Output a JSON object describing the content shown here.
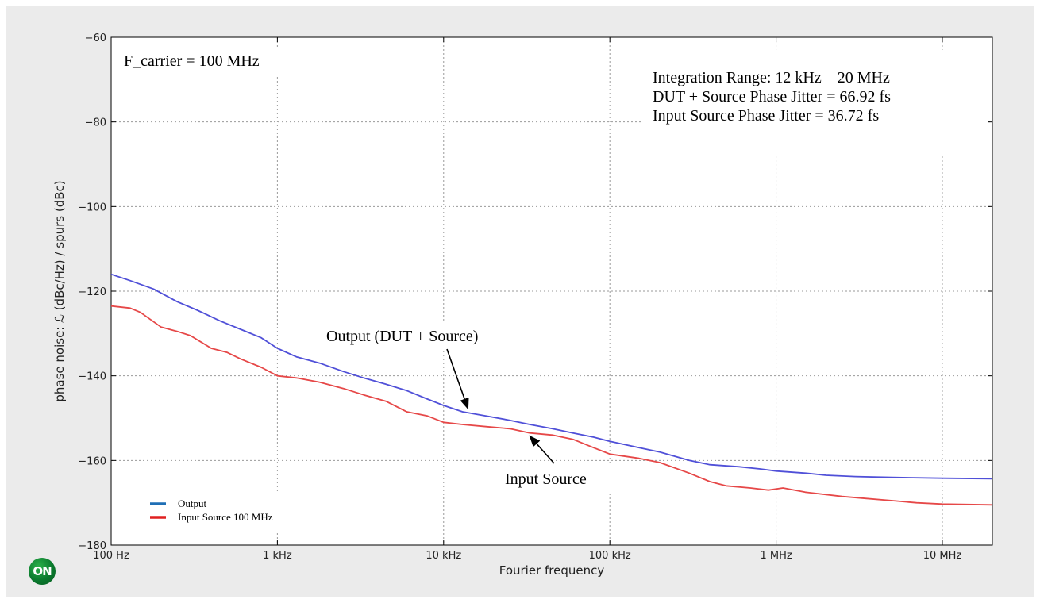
{
  "chart_data": {
    "type": "line",
    "xlabel": "Fourier frequency",
    "ylabel": "phase noise: ℒ (dBc/Hz) / spurs (dBc)",
    "x_scale": "log",
    "x_range_hz": [
      100,
      20000000
    ],
    "ylim": [
      -180,
      -60
    ],
    "y_ticks": [
      -60,
      -80,
      -100,
      -120,
      -140,
      -160,
      -180
    ],
    "x_ticks": [
      {
        "hz": 100,
        "label": "100 Hz"
      },
      {
        "hz": 1000,
        "label": "1 kHz"
      },
      {
        "hz": 10000,
        "label": "10 kHz"
      },
      {
        "hz": 100000,
        "label": "100 kHz"
      },
      {
        "hz": 1000000,
        "label": "1 MHz"
      },
      {
        "hz": 10000000,
        "label": "10 MHz"
      }
    ],
    "grid": true,
    "legend_position": "lower-left",
    "series": [
      {
        "name": "Output",
        "color": "#5050d8",
        "legend_color": "#1f6fb5",
        "points": [
          [
            100,
            -116
          ],
          [
            130,
            -117.5
          ],
          [
            180,
            -119.5
          ],
          [
            250,
            -122.5
          ],
          [
            330,
            -124.5
          ],
          [
            450,
            -127
          ],
          [
            600,
            -129
          ],
          [
            800,
            -131
          ],
          [
            1000,
            -133.5
          ],
          [
            1300,
            -135.5
          ],
          [
            1800,
            -137
          ],
          [
            2500,
            -139
          ],
          [
            3300,
            -140.5
          ],
          [
            4500,
            -142
          ],
          [
            6000,
            -143.5
          ],
          [
            8000,
            -145.5
          ],
          [
            10000,
            -147
          ],
          [
            13000,
            -148.5
          ],
          [
            18000,
            -149.5
          ],
          [
            25000,
            -150.5
          ],
          [
            33000,
            -151.5
          ],
          [
            45000,
            -152.5
          ],
          [
            60000,
            -153.5
          ],
          [
            80000,
            -154.5
          ],
          [
            100000,
            -155.5
          ],
          [
            150000,
            -157
          ],
          [
            200000,
            -158
          ],
          [
            300000,
            -160
          ],
          [
            400000,
            -161
          ],
          [
            600000,
            -161.5
          ],
          [
            800000,
            -162
          ],
          [
            1000000,
            -162.5
          ],
          [
            1500000,
            -163
          ],
          [
            2000000,
            -163.5
          ],
          [
            3000000,
            -163.8
          ],
          [
            5000000,
            -164
          ],
          [
            10000000,
            -164.2
          ],
          [
            20000000,
            -164.3
          ]
        ]
      },
      {
        "name": "Input Source 100 MHz",
        "color": "#e64848",
        "legend_color": "#e02020",
        "points": [
          [
            100,
            -123.5
          ],
          [
            130,
            -124
          ],
          [
            150,
            -125
          ],
          [
            200,
            -128.5
          ],
          [
            250,
            -129.5
          ],
          [
            300,
            -130.5
          ],
          [
            400,
            -133.5
          ],
          [
            500,
            -134.5
          ],
          [
            600,
            -136
          ],
          [
            800,
            -138
          ],
          [
            1000,
            -140
          ],
          [
            1300,
            -140.5
          ],
          [
            1800,
            -141.5
          ],
          [
            2500,
            -143
          ],
          [
            3300,
            -144.5
          ],
          [
            4500,
            -146
          ],
          [
            6000,
            -148.5
          ],
          [
            8000,
            -149.5
          ],
          [
            10000,
            -151
          ],
          [
            13000,
            -151.5
          ],
          [
            18000,
            -152
          ],
          [
            25000,
            -152.5
          ],
          [
            33000,
            -153.5
          ],
          [
            45000,
            -154
          ],
          [
            60000,
            -155
          ],
          [
            80000,
            -157
          ],
          [
            100000,
            -158.5
          ],
          [
            150000,
            -159.5
          ],
          [
            200000,
            -160.5
          ],
          [
            300000,
            -163
          ],
          [
            400000,
            -165
          ],
          [
            500000,
            -166
          ],
          [
            700000,
            -166.5
          ],
          [
            900000,
            -167
          ],
          [
            1100000,
            -166.5
          ],
          [
            1500000,
            -167.5
          ],
          [
            2500000,
            -168.5
          ],
          [
            3500000,
            -169
          ],
          [
            5000000,
            -169.5
          ],
          [
            7000000,
            -170
          ],
          [
            10000000,
            -170.3
          ],
          [
            20000000,
            -170.5
          ]
        ]
      }
    ],
    "legend": [
      {
        "label": "Output",
        "color": "#1f6fb5"
      },
      {
        "label": "Input Source 100 MHz",
        "color": "#e02020"
      }
    ],
    "annotations": {
      "carrier": "F_carrier = 100 MHz",
      "integration_lines": [
        "Integration Range: 12 kHz – 20 MHz",
        "DUT + Source Phase Jitter = 66.92 fs",
        "Input Source Phase Jitter = 36.72 fs"
      ],
      "output_callout": "Output (DUT + Source)",
      "output_arrow_target": {
        "hz": 14000,
        "db": -148.5
      },
      "input_callout": "Input Source",
      "input_arrow_target": {
        "hz": 33000,
        "db": -153.5
      }
    }
  },
  "logo": {
    "text": "ON",
    "color": "#0b7a2e"
  }
}
